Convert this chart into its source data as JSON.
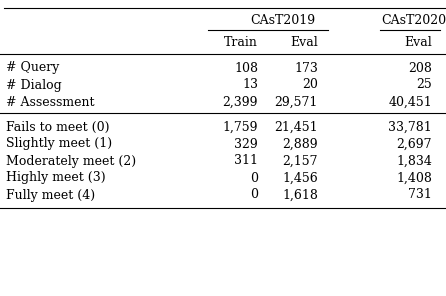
{
  "header_row1": [
    "CAsT2019",
    "CAsT2020"
  ],
  "header_row2": [
    "Train",
    "Eval",
    "Eval"
  ],
  "rows_section1": [
    [
      "# Query",
      "108",
      "173",
      "208"
    ],
    [
      "# Dialog",
      "13",
      "20",
      "25"
    ],
    [
      "# Assessment",
      "2,399",
      "29,571",
      "40,451"
    ]
  ],
  "rows_section2": [
    [
      "Fails to meet (0)",
      "1,759",
      "21,451",
      "33,781"
    ],
    [
      "Slightly meet (1)",
      "329",
      "2,889",
      "2,697"
    ],
    [
      "Moderately meet (2)",
      "311",
      "2,157",
      "1,834"
    ],
    [
      "Highly meet (3)",
      "0",
      "1,456",
      "1,408"
    ],
    [
      "Fully meet (4)",
      "0",
      "1,618",
      "731"
    ]
  ],
  "background_color": "#ffffff",
  "text_color": "#000000",
  "fontsize": 9.0
}
